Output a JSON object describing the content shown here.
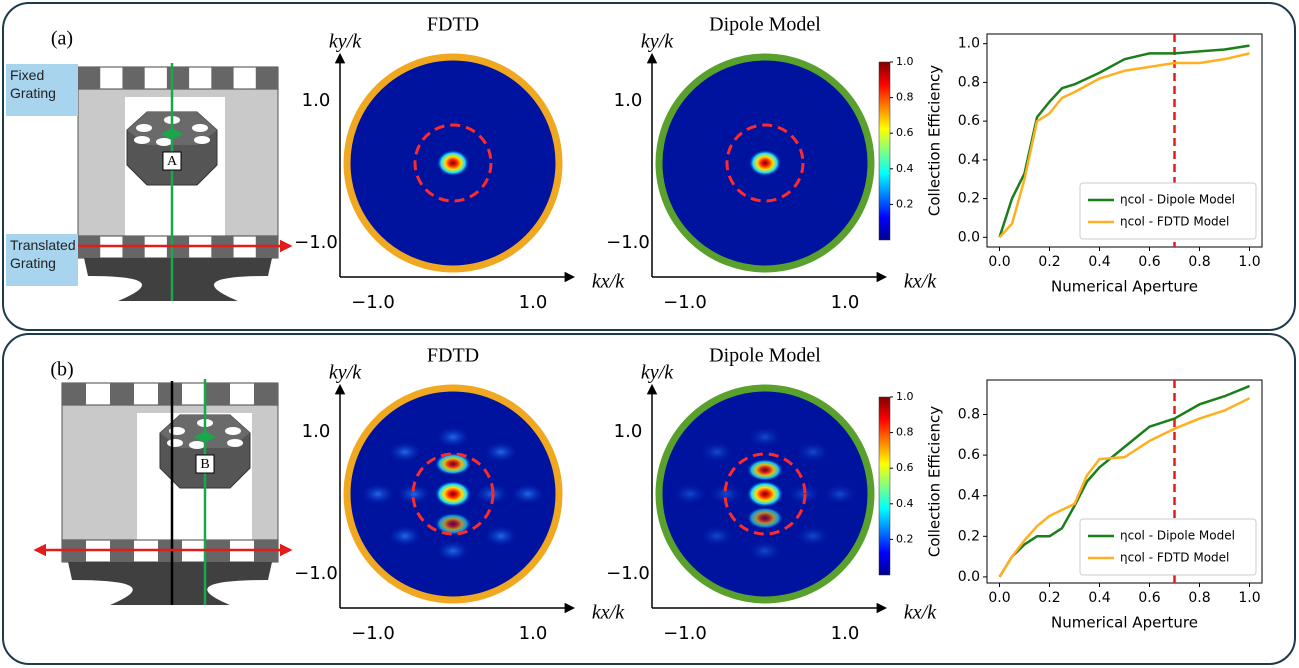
{
  "panels": [
    {
      "label": "(a)",
      "diagram": {
        "top_label": "Fixed Grating",
        "bottom_label": "Translated Grating",
        "site": "A"
      },
      "far_field": [
        {
          "title": "FDTD",
          "ylabel": "ky/k",
          "xlabel": "kx/k",
          "ring_color": "#f0a820",
          "yticks": [
            {
              "value": 1,
              "label": "1.0"
            },
            {
              "value": -1,
              "label": "−1.0"
            }
          ],
          "xticks": [
            {
              "value": -1,
              "label": "−1.0"
            },
            {
              "value": 1,
              "label": "1.0"
            }
          ]
        },
        {
          "title": "Dipole Model",
          "ylabel": "ky/k",
          "xlabel": "kx/k",
          "ring_color": "#5aa02c",
          "yticks": [
            {
              "value": 1,
              "label": "1.0"
            },
            {
              "value": -1,
              "label": "−1.0"
            }
          ],
          "xticks": [
            {
              "value": -1,
              "label": "−1.0"
            },
            {
              "value": 1,
              "label": "1.0"
            }
          ]
        }
      ],
      "colorbar": {
        "clim": [
          0,
          1
        ],
        "ticks": [
          0.2,
          0.4,
          0.6,
          0.8,
          {
            "value": 1,
            "label": "1.0"
          }
        ]
      }
    },
    {
      "label": "(b)",
      "diagram": {
        "site": "B"
      },
      "far_field": [
        {
          "title": "FDTD",
          "ylabel": "ky/k",
          "xlabel": "kx/k",
          "ring_color": "#f0a820",
          "yticks": [
            {
              "value": 1,
              "label": "1.0"
            },
            {
              "value": -1,
              "label": "−1.0"
            }
          ],
          "xticks": [
            {
              "value": -1,
              "label": "−1.0"
            },
            {
              "value": 1,
              "label": "1.0"
            }
          ]
        },
        {
          "title": "Dipole Model",
          "ylabel": "ky/k",
          "xlabel": "kx/k",
          "ring_color": "#5aa02c",
          "yticks": [
            {
              "value": 1,
              "label": "1.0"
            },
            {
              "value": -1,
              "label": "−1.0"
            }
          ],
          "xticks": [
            {
              "value": -1,
              "label": "−1.0"
            },
            {
              "value": 1,
              "label": "1.0"
            }
          ]
        }
      ],
      "colorbar": {
        "clim": [
          0,
          1
        ],
        "ticks": [
          0.2,
          0.4,
          0.6,
          0.8,
          {
            "value": 1,
            "label": "1.0"
          }
        ]
      }
    }
  ],
  "chart_data": [
    {
      "type": "line",
      "xlabel": "Numerical Aperture",
      "ylabel": "Collection Efficiency",
      "x": [
        0,
        0.05,
        0.1,
        0.15,
        0.2,
        0.25,
        0.3,
        0.4,
        0.5,
        0.6,
        0.7,
        0.8,
        0.9,
        1.0
      ],
      "series": [
        {
          "name": "ηcol - Dipole Model",
          "color": "#1a7f1a",
          "values": [
            0,
            0.2,
            0.33,
            0.62,
            0.7,
            0.77,
            0.79,
            0.85,
            0.92,
            0.95,
            0.95,
            0.96,
            0.97,
            0.99
          ]
        },
        {
          "name": "ηcol - FDTD Model",
          "color": "#ffb020",
          "values": [
            0,
            0.07,
            0.3,
            0.6,
            0.64,
            0.72,
            0.75,
            0.82,
            0.86,
            0.88,
            0.9,
            0.9,
            0.92,
            0.95
          ]
        }
      ],
      "xlim": [
        -0.05,
        1.05
      ],
      "ylim": [
        -0.05,
        1.05
      ],
      "xticks": [
        {
          "value": 0,
          "label": "0.0"
        },
        0.2,
        0.4,
        0.6,
        0.8,
        {
          "value": 1,
          "label": "1.0"
        }
      ],
      "yticks": [
        {
          "value": 0,
          "label": "0.0"
        },
        0.2,
        0.4,
        0.6,
        0.8,
        {
          "value": 1,
          "label": "1.0"
        }
      ],
      "vline": 0.7,
      "legend": "lower right"
    },
    {
      "type": "line",
      "xlabel": "Numerical Aperture",
      "ylabel": "Collection Efficiency",
      "x": [
        0,
        0.05,
        0.1,
        0.15,
        0.2,
        0.25,
        0.3,
        0.35,
        0.4,
        0.5,
        0.6,
        0.7,
        0.8,
        0.9,
        1.0
      ],
      "series": [
        {
          "name": "ηcol - Dipole Model",
          "color": "#1a7f1a",
          "values": [
            0,
            0.1,
            0.16,
            0.2,
            0.2,
            0.24,
            0.35,
            0.47,
            0.54,
            0.64,
            0.74,
            0.78,
            0.85,
            0.89,
            0.94
          ]
        },
        {
          "name": "ηcol - FDTD Model",
          "color": "#ffb020",
          "values": [
            0,
            0.1,
            0.18,
            0.25,
            0.3,
            0.33,
            0.36,
            0.5,
            0.58,
            0.59,
            0.67,
            0.73,
            0.78,
            0.82,
            0.88
          ]
        }
      ],
      "xlim": [
        -0.05,
        1.05
      ],
      "ylim": [
        -0.03,
        0.97
      ],
      "xticks": [
        {
          "value": 0,
          "label": "0.0"
        },
        0.2,
        0.4,
        0.6,
        0.8,
        {
          "value": 1,
          "label": "1.0"
        }
      ],
      "yticks": [
        {
          "value": 0,
          "label": "0.0"
        },
        0.2,
        0.4,
        0.6,
        0.8
      ],
      "vline": 0.7,
      "legend": "lower right"
    }
  ]
}
